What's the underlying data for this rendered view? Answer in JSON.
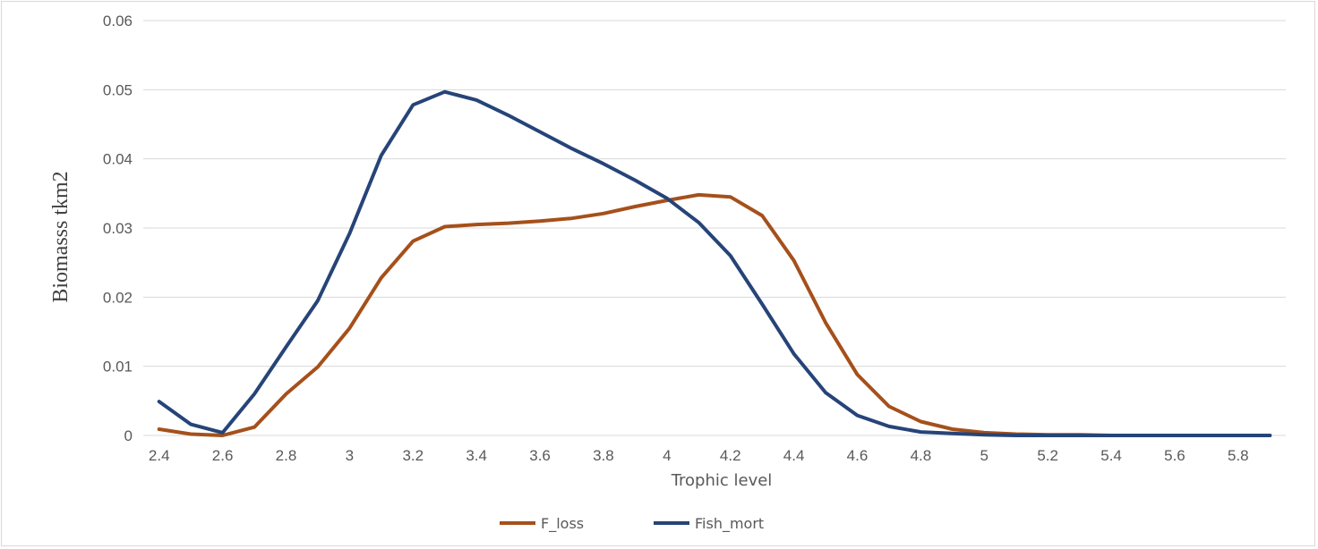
{
  "chart_data": {
    "type": "line",
    "title": "",
    "xlabel": "Trophic level",
    "ylabel": "Biomasss tkm2",
    "x": [
      2.4,
      2.5,
      2.6,
      2.7,
      2.8,
      2.9,
      3.0,
      3.1,
      3.2,
      3.3,
      3.4,
      3.5,
      3.6,
      3.7,
      3.8,
      3.9,
      4.0,
      4.1,
      4.2,
      4.3,
      4.4,
      4.5,
      4.6,
      4.7,
      4.8,
      4.9,
      5.0,
      5.1,
      5.2,
      5.3,
      5.4,
      5.5,
      5.6,
      5.7,
      5.8,
      5.9
    ],
    "x_tick_labels": [
      "2.4",
      "2.6",
      "2.8",
      "3",
      "3.2",
      "3.4",
      "3.6",
      "3.8",
      "4",
      "4.2",
      "4.4",
      "4.6",
      "4.8",
      "5",
      "5.2",
      "5.4",
      "5.6",
      "5.8"
    ],
    "y_tick_labels": [
      "0",
      "0.01",
      "0.02",
      "0.03",
      "0.04",
      "0.05",
      "0.06"
    ],
    "ylim": [
      0,
      0.06
    ],
    "grid": true,
    "legend_position": "bottom",
    "series": [
      {
        "name": "F_loss",
        "color": "#A5501B",
        "values": [
          0.0009,
          0.0002,
          0.0,
          0.0012,
          0.006,
          0.0099,
          0.0155,
          0.0228,
          0.0281,
          0.0302,
          0.0305,
          0.0307,
          0.031,
          0.0314,
          0.0321,
          0.0331,
          0.034,
          0.0348,
          0.0345,
          0.0318,
          0.0253,
          0.0163,
          0.0088,
          0.0042,
          0.002,
          0.0009,
          0.0004,
          0.0002,
          0.0001,
          0.0001,
          0.0,
          0.0,
          0.0,
          0.0,
          0.0,
          0.0
        ]
      },
      {
        "name": "Fish_mort",
        "color": "#264478",
        "values": [
          0.0049,
          0.0016,
          0.0004,
          0.006,
          0.0128,
          0.0195,
          0.0292,
          0.0405,
          0.0478,
          0.0497,
          0.0485,
          0.0463,
          0.0439,
          0.0415,
          0.0393,
          0.0369,
          0.0343,
          0.0308,
          0.026,
          0.019,
          0.0118,
          0.0062,
          0.0029,
          0.0013,
          0.0005,
          0.0003,
          0.0001,
          0.0,
          0.0,
          0.0,
          0.0,
          0.0,
          0.0,
          0.0,
          0.0,
          0.0
        ]
      }
    ]
  }
}
